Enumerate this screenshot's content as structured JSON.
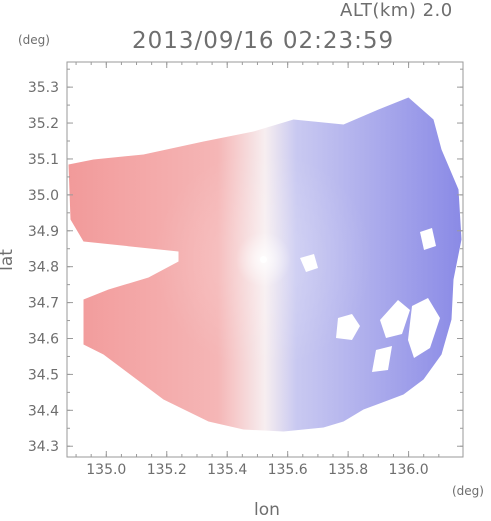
{
  "header": {
    "altitude": "ALT(km) 2.0",
    "datetime": "2013/09/16 02:23:59",
    "units_top": "(deg)",
    "units_bottom": "(deg)"
  },
  "chart_data": {
    "type": "heatmap",
    "title": "2013/09/16 02:23:59",
    "xlabel": "lon",
    "ylabel": "lat",
    "xlim": [
      134.87,
      136.18
    ],
    "ylim": [
      34.27,
      35.37
    ],
    "x_ticks": [
      "135.0",
      "135.2",
      "135.4",
      "135.6",
      "135.8",
      "136.0"
    ],
    "y_ticks": [
      "34.3",
      "34.4",
      "34.5",
      "34.6",
      "34.7",
      "34.8",
      "34.9",
      "35.0",
      "35.1",
      "35.2",
      "35.3"
    ],
    "radar_center": {
      "lon": 135.52,
      "lat": 34.82
    },
    "colors": {
      "toward": "#f09a9a",
      "away": "#8e8ee8",
      "zero": "#f6f6f8"
    }
  }
}
